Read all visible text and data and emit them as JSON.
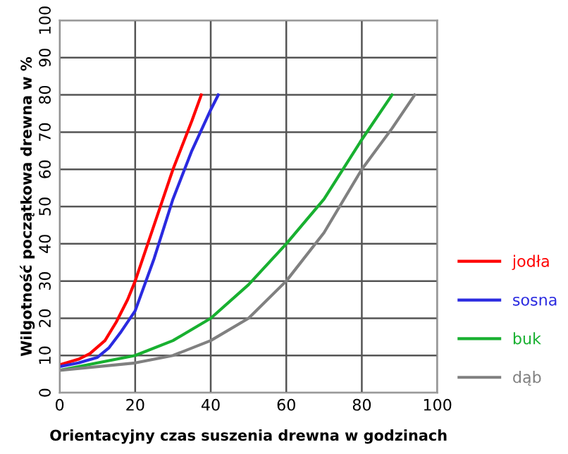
{
  "chart_data": {
    "type": "line",
    "xlabel": "Orientacyjny czas suszenia drewna w godzinach",
    "ylabel": "Wilgotność początkowa drewna w %",
    "xlim": [
      0,
      100
    ],
    "ylim": [
      0,
      100
    ],
    "xticks": [
      0,
      20,
      40,
      60,
      80,
      100
    ],
    "yticks": [
      0,
      10,
      20,
      30,
      40,
      50,
      60,
      70,
      80,
      90,
      100
    ],
    "grid": true,
    "legend": "right",
    "marker": "none",
    "line_style": "solid",
    "series": [
      {
        "name": "jodła",
        "color": "#ff0000",
        "x": [
          0,
          5,
          8,
          12,
          15,
          18,
          20,
          25,
          30,
          35,
          37.5
        ],
        "values": [
          7.5,
          9,
          10.5,
          14,
          19,
          25,
          30,
          45,
          60,
          73,
          80
        ]
      },
      {
        "name": "sosna",
        "color": "#2a2ae0",
        "x": [
          0,
          5,
          10,
          13,
          16,
          20,
          25,
          30,
          35,
          40,
          42
        ],
        "values": [
          7,
          8,
          9.5,
          12,
          16,
          22,
          36,
          52,
          65,
          76,
          80
        ]
      },
      {
        "name": "buk",
        "color": "#18b030",
        "x": [
          0,
          10,
          20,
          30,
          40,
          50,
          60,
          70,
          80,
          88
        ],
        "values": [
          6,
          8,
          10,
          14,
          20,
          29,
          40,
          52,
          68,
          80
        ]
      },
      {
        "name": "dąb",
        "color": "#808080",
        "x": [
          0,
          10,
          20,
          30,
          40,
          50,
          60,
          70,
          80,
          88,
          94
        ],
        "values": [
          6,
          7,
          8,
          10,
          14,
          20,
          30,
          43,
          60,
          71,
          80
        ]
      }
    ]
  }
}
